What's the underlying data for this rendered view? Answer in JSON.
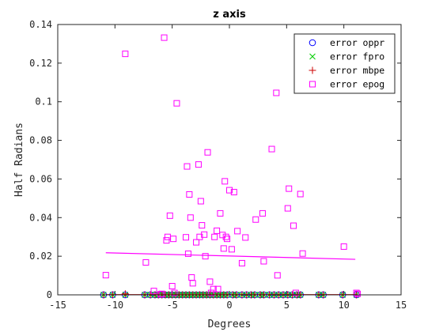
{
  "chart_data": {
    "type": "scatter",
    "title": "z axis",
    "xlabel": "Degrees",
    "ylabel": "Half Radians",
    "xlim": [
      -15,
      15
    ],
    "ylim": [
      0,
      0.14
    ],
    "xticks": [
      "-15",
      "-10",
      "-5",
      "0",
      "5",
      "10",
      "15"
    ],
    "yticks": [
      "0",
      "0.02",
      "0.04",
      "0.06",
      "0.08",
      "0.1",
      "0.12",
      "0.14"
    ],
    "legend_position": "top-right",
    "series": [
      {
        "name": "error oppr",
        "marker": "circle",
        "color": "#0000ff",
        "x": [
          -11,
          -10.2,
          -9.1,
          -7.4,
          -6.9,
          -6.5,
          -6.2,
          -5.9,
          -5.6,
          -5.3,
          -5.0,
          -4.7,
          -4.4,
          -4.1,
          -3.8,
          -3.5,
          -3.2,
          -2.9,
          -2.6,
          -2.3,
          -2.0,
          -1.7,
          -1.4,
          -1.1,
          -0.8,
          -0.5,
          -0.2,
          0.3,
          0.6,
          1.1,
          1.5,
          1.9,
          2.2,
          2.7,
          3.0,
          3.5,
          3.9,
          4.3,
          4.7,
          5.1,
          5.5,
          5.9,
          6.2,
          7.8,
          8.2,
          9.9,
          11.1
        ],
        "y": [
          0,
          0,
          0,
          0,
          0,
          0,
          0,
          0,
          0,
          0,
          0,
          0,
          0,
          0,
          0,
          0,
          0,
          0,
          0,
          0,
          0,
          0,
          0,
          0,
          0,
          0,
          0,
          0,
          0,
          0,
          0,
          0,
          0,
          0,
          0,
          0,
          0,
          0,
          0,
          0,
          0,
          0,
          0,
          0,
          0,
          0,
          0
        ]
      },
      {
        "name": "error fpro",
        "marker": "x",
        "color": "#00cc00",
        "x": [
          -11,
          -10.2,
          -9.1,
          -7.4,
          -6.9,
          -6.5,
          -6.2,
          -5.9,
          -5.6,
          -5.3,
          -5.0,
          -4.7,
          -4.4,
          -4.1,
          -3.8,
          -3.5,
          -3.2,
          -2.9,
          -2.6,
          -2.3,
          -2.0,
          -1.7,
          -1.4,
          -1.1,
          -0.8,
          -0.5,
          -0.2,
          0.3,
          0.6,
          1.1,
          1.5,
          1.9,
          2.2,
          2.7,
          3.0,
          3.5,
          3.9,
          4.3,
          4.7,
          5.1,
          5.5,
          5.9,
          6.2,
          7.8,
          8.2,
          9.9,
          11.1
        ],
        "y": [
          0,
          0,
          0,
          0,
          0,
          0,
          0,
          0,
          0,
          0,
          0,
          0,
          0,
          0,
          0,
          0,
          0,
          0,
          0,
          0,
          0,
          0,
          0,
          0,
          0,
          0,
          0,
          0,
          0,
          0,
          0,
          0,
          0,
          0,
          0,
          0,
          0,
          0,
          0,
          0,
          0,
          0,
          0,
          0,
          0,
          0,
          0
        ]
      },
      {
        "name": "error mbpe",
        "marker": "plus",
        "color": "#cc0000",
        "x": [
          -11,
          -10.2,
          -9.1,
          -7.4,
          -6.9,
          -6.5,
          -6.2,
          -5.9,
          -5.6,
          -5.3,
          -5.0,
          -4.7,
          -4.4,
          -4.1,
          -3.8,
          -3.5,
          -3.2,
          -2.9,
          -2.6,
          -2.3,
          -2.0,
          -1.7,
          -1.4,
          -1.1,
          -0.8,
          -0.5,
          -0.2,
          0.3,
          0.6,
          1.1,
          1.5,
          1.9,
          2.2,
          2.7,
          3.0,
          3.5,
          3.9,
          4.3,
          4.7,
          5.1,
          5.5,
          5.9,
          6.2,
          7.8,
          8.2,
          9.9,
          11.1
        ],
        "y": [
          0,
          0,
          0.0005,
          0,
          0,
          0,
          0,
          0,
          0,
          0,
          0,
          0,
          0,
          0,
          0,
          0,
          0,
          0,
          0,
          0,
          0,
          0,
          0,
          0,
          0,
          0,
          0,
          0,
          0,
          0,
          0,
          0,
          0,
          0,
          0,
          0,
          0,
          0,
          0,
          0,
          0,
          0,
          0,
          0,
          0,
          0,
          0
        ],
        "fit_line": {
          "x": [
            -10.8,
            11
          ],
          "y": [
            0.0001,
            0.0001
          ]
        }
      },
      {
        "name": "error epog",
        "marker": "square",
        "color": "#ff00ff",
        "x": [
          -10.8,
          -9.1,
          -7.3,
          -6.6,
          -6.0,
          -5.9,
          -5.7,
          -5.5,
          -5.4,
          -5.2,
          -5.0,
          -4.9,
          -4.8,
          -4.6,
          -3.8,
          -3.7,
          -3.6,
          -3.5,
          -3.4,
          -3.3,
          -3.2,
          -2.9,
          -2.7,
          -2.6,
          -2.5,
          -2.4,
          -2.2,
          -2.1,
          -1.9,
          -1.7,
          -1.6,
          -1.4,
          -1.3,
          -1.1,
          -1.0,
          -0.8,
          -0.6,
          -0.5,
          -0.4,
          -0.3,
          -0.2,
          0.0,
          0.2,
          0.4,
          0.7,
          1.1,
          1.4,
          2.3,
          2.9,
          3.0,
          3.7,
          4.1,
          4.2,
          5.1,
          5.2,
          5.6,
          5.8,
          6.2,
          6.4,
          10.0,
          11.1,
          11.2
        ],
        "y": [
          0.0102,
          0.1248,
          0.0168,
          0.002,
          0.0003,
          0.0005,
          0.1332,
          0.0282,
          0.03,
          0.041,
          0.0045,
          0.029,
          0.001,
          0.0992,
          0.0298,
          0.0665,
          0.0213,
          0.052,
          0.04,
          0.009,
          0.006,
          0.0272,
          0.0675,
          0.03,
          0.0485,
          0.036,
          0.0312,
          0.02,
          0.0738,
          0.0068,
          0.001,
          0.003,
          0.03,
          0.0332,
          0.003,
          0.0422,
          0.031,
          0.024,
          0.0588,
          0.03,
          0.029,
          0.0542,
          0.0236,
          0.0532,
          0.033,
          0.0164,
          0.0297,
          0.039,
          0.0422,
          0.0174,
          0.0755,
          0.1046,
          0.0101,
          0.0448,
          0.055,
          0.0358,
          0.001,
          0.0522,
          0.0214,
          0.025,
          0.001,
          0.0005
        ],
        "fit_line": {
          "x": [
            -10.8,
            11
          ],
          "y": [
            0.0218,
            0.0184
          ]
        }
      }
    ]
  }
}
